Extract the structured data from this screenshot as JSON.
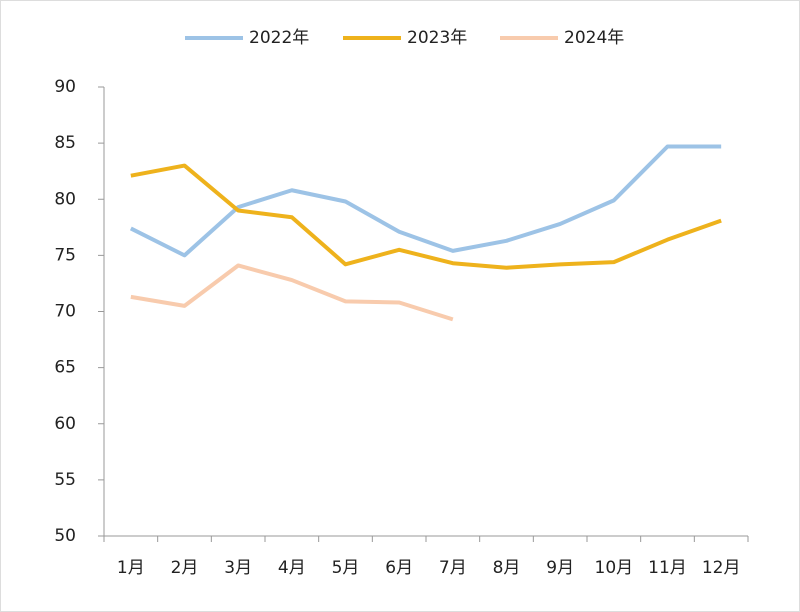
{
  "chart_data": {
    "type": "line",
    "categories": [
      "1月",
      "2月",
      "3月",
      "4月",
      "5月",
      "6月",
      "7月",
      "8月",
      "9月",
      "10月",
      "11月",
      "12月"
    ],
    "series": [
      {
        "name": "2022年",
        "color": "#9dc3e6",
        "values": [
          77.4,
          75.0,
          79.3,
          80.8,
          79.8,
          77.1,
          75.4,
          76.3,
          77.8,
          79.9,
          84.7,
          84.7
        ]
      },
      {
        "name": "2023年",
        "color": "#eeb21c",
        "values": [
          82.1,
          83.0,
          79.0,
          78.4,
          74.2,
          75.5,
          74.3,
          73.9,
          74.2,
          74.4,
          76.4,
          78.1
        ]
      },
      {
        "name": "2024年",
        "color": "#f8cbad",
        "values": [
          71.3,
          70.5,
          74.1,
          72.8,
          70.9,
          70.8,
          69.3,
          null,
          null,
          null,
          null,
          null
        ]
      }
    ],
    "ylim": [
      50,
      90
    ],
    "yticks": [
      50,
      55,
      60,
      65,
      70,
      75,
      80,
      85,
      90
    ],
    "grid": false,
    "legend": "top"
  }
}
